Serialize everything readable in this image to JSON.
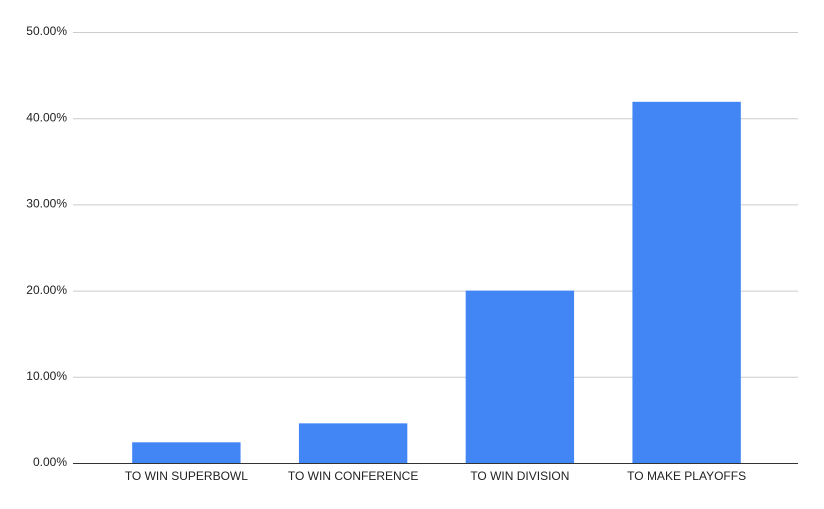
{
  "chart_data": {
    "type": "bar",
    "categories": [
      "TO WIN SUPERBOWL",
      "TO WIN CONFERENCE",
      "TO WIN DIVISION",
      "TO MAKE PLAYOFFS"
    ],
    "values": [
      2.4,
      4.6,
      20.0,
      41.9
    ],
    "color": "#4285f4",
    "ylim": [
      0,
      50
    ],
    "yticks": [
      {
        "value": 0,
        "label": "0.00%"
      },
      {
        "value": 10,
        "label": "10.00%"
      },
      {
        "value": 20,
        "label": "20.00%"
      },
      {
        "value": 30,
        "label": "30.00%"
      },
      {
        "value": 40,
        "label": "40.00%"
      },
      {
        "value": 50,
        "label": "50.00%"
      }
    ],
    "grid": true
  }
}
